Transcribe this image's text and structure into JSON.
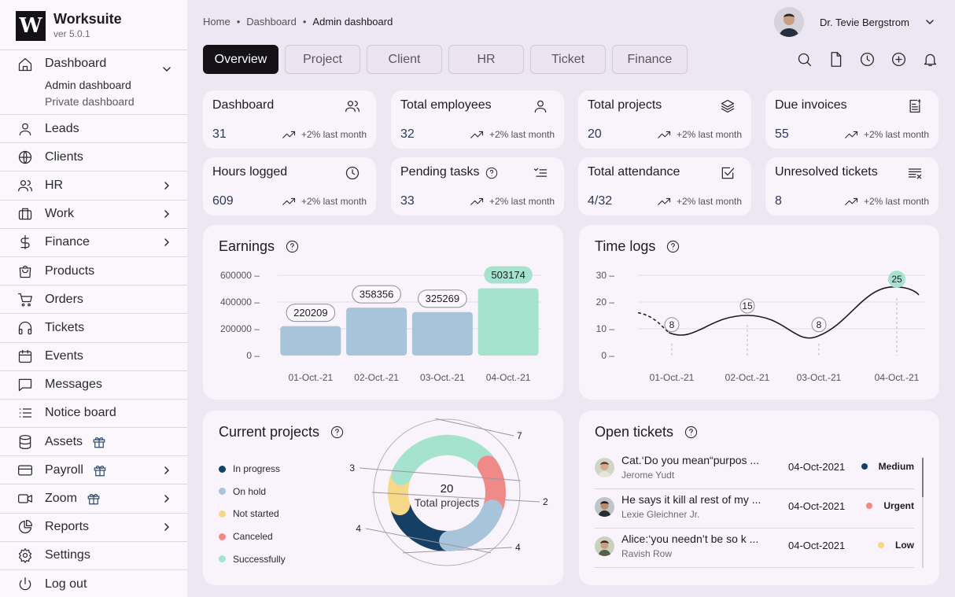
{
  "app": {
    "name": "Worksuite",
    "version": "ver 5.0.1",
    "logo_letter": "W"
  },
  "sidebar": {
    "dashboard": {
      "label": "Dashboard",
      "sub": [
        "Admin dashboard",
        "Private dashboard"
      ]
    },
    "items": [
      {
        "label": "Leads",
        "icon": "user-icon"
      },
      {
        "label": "Clients",
        "icon": "globe-icon"
      },
      {
        "label": "HR",
        "icon": "users-icon"
      },
      {
        "label": "Work",
        "icon": "briefcase-icon"
      },
      {
        "label": "Finance",
        "icon": "dollar-icon"
      },
      {
        "label": "Products",
        "icon": "bag-icon"
      },
      {
        "label": "Orders",
        "icon": "cart-icon"
      },
      {
        "label": "Tickets",
        "icon": "headphones-icon"
      },
      {
        "label": "Events",
        "icon": "calendar-icon"
      },
      {
        "label": "Messages",
        "icon": "message-icon"
      },
      {
        "label": "Notice board",
        "icon": "list-icon"
      },
      {
        "label": "Assets",
        "icon": "database-icon"
      },
      {
        "label": "Payroll",
        "icon": "card-icon"
      },
      {
        "label": "Zoom",
        "icon": "video-icon"
      },
      {
        "label": "Reports",
        "icon": "pie-icon"
      },
      {
        "label": "Settings",
        "icon": "gear-icon"
      },
      {
        "label": "Log out",
        "icon": "power-icon"
      }
    ]
  },
  "breadcrumb": [
    "Home",
    "Dashboard",
    "Admin dashboard"
  ],
  "user": {
    "name": "Dr. Tevie Bergstrom"
  },
  "tabs": [
    "Overview",
    "Project",
    "Client",
    "HR",
    "Ticket",
    "Finance"
  ],
  "stats": [
    {
      "title": "Dashboard",
      "value": "31",
      "trend": "+2% last month"
    },
    {
      "title": "Total employees",
      "value": "32",
      "trend": "+2% last month"
    },
    {
      "title": "Total projects",
      "value": "20",
      "trend": "+2% last month"
    },
    {
      "title": "Due invoices",
      "value": "55",
      "trend": "+2% last month"
    },
    {
      "title": "Hours logged",
      "value": "609",
      "trend": "+2% last month"
    },
    {
      "title": "Pending tasks",
      "value": "33",
      "trend": "+2% last month"
    },
    {
      "title": "Total attendance",
      "value": "4/32",
      "trend": "+2% last month"
    },
    {
      "title": "Unresolved tickets",
      "value": "8",
      "trend": "+2% last month"
    }
  ],
  "earnings": {
    "title": "Earnings"
  },
  "timelogs": {
    "title": "Time logs"
  },
  "projects": {
    "title": "Current projects",
    "center_value": "20",
    "center_label": "Total projects",
    "legend": [
      {
        "label": "In progress",
        "color": "#163f66"
      },
      {
        "label": "On hold",
        "color": "#a8c4da"
      },
      {
        "label": "Not started",
        "color": "#f6d889"
      },
      {
        "label": "Canceled",
        "color": "#ef8a88"
      },
      {
        "label": "Successfully",
        "color": "#a6e3cf"
      }
    ]
  },
  "tickets": {
    "title": "Open tickets",
    "rows": [
      {
        "message": "Cat.‘Do you mean“purpos ...",
        "name": "Jerome Yudt",
        "date": "04-Oct-2021",
        "priority": "Medium",
        "color": "#163f66"
      },
      {
        "message": "He says it kill al rest of my ...",
        "name": "Lexie Gleichner Jr.",
        "date": "04-Oct-2021",
        "priority": "Urgent",
        "color": "#ef8a88"
      },
      {
        "message": "Alice:‘you needn’t be so k ...",
        "name": "Ravish Row",
        "date": "04-Oct-2021",
        "priority": "Low",
        "color": "#f6d889"
      }
    ]
  },
  "chart_data": [
    {
      "type": "bar",
      "title": "Earnings",
      "categories": [
        "01-Oct.-21",
        "02-Oct.-21",
        "03-Oct.-21",
        "04-Oct.-21"
      ],
      "values": [
        220209,
        358356,
        325269,
        503174
      ],
      "ylim": [
        0,
        600000
      ],
      "yticks": [
        "600000 –",
        "400000 –",
        "200000 –",
        "0 –"
      ],
      "xlabel": "",
      "ylabel": "",
      "colors": [
        "#a8c4da",
        "#a8c4da",
        "#a8c4da",
        "#a6e3cf"
      ]
    },
    {
      "type": "line",
      "title": "Time logs",
      "categories": [
        "01-Oct.-21",
        "02-Oct.-21",
        "03-Oct.-21",
        "04-Oct.-21"
      ],
      "values": [
        8,
        15,
        8,
        25
      ],
      "ylim": [
        0,
        30
      ],
      "yticks": [
        "30 –",
        "20 –",
        "10 –",
        "0 –"
      ],
      "xlabel": "",
      "ylabel": ""
    },
    {
      "type": "pie",
      "title": "Current projects",
      "labels": [
        "In progress",
        "Not started",
        "Successfully",
        "Canceled",
        "On hold"
      ],
      "values": [
        4,
        2,
        7,
        3,
        4
      ],
      "value_labels": [
        "4",
        "2",
        "7",
        "3",
        "4"
      ]
    }
  ]
}
